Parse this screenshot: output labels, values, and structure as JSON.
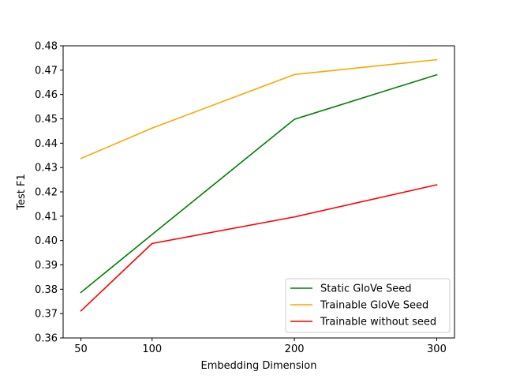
{
  "chart_data": {
    "type": "line",
    "x": [
      50,
      100,
      200,
      300
    ],
    "xticks": [
      50,
      100,
      200,
      300
    ],
    "yticks": [
      "0.36",
      "0.37",
      "0.38",
      "0.39",
      "0.40",
      "0.41",
      "0.42",
      "0.43",
      "0.44",
      "0.45",
      "0.46",
      "0.47",
      "0.48"
    ],
    "xlim": [
      37.5,
      312.5
    ],
    "ylim": [
      0.36,
      0.48
    ],
    "xlabel": "Embedding Dimension",
    "ylabel": "Test F1",
    "grid": false,
    "legend_position": "lower-right",
    "series": [
      {
        "name": "Static GloVe Seed",
        "color": "#008000",
        "values": [
          0.3787,
          0.4025,
          0.4498,
          0.4681
        ]
      },
      {
        "name": "Trainable GloVe Seed",
        "color": "#FFA500",
        "values": [
          0.4337,
          0.4462,
          0.4682,
          0.4743
        ]
      },
      {
        "name": "Trainable without seed",
        "color": "#FF0000",
        "values": [
          0.3711,
          0.3988,
          0.4097,
          0.4229
        ]
      }
    ]
  }
}
